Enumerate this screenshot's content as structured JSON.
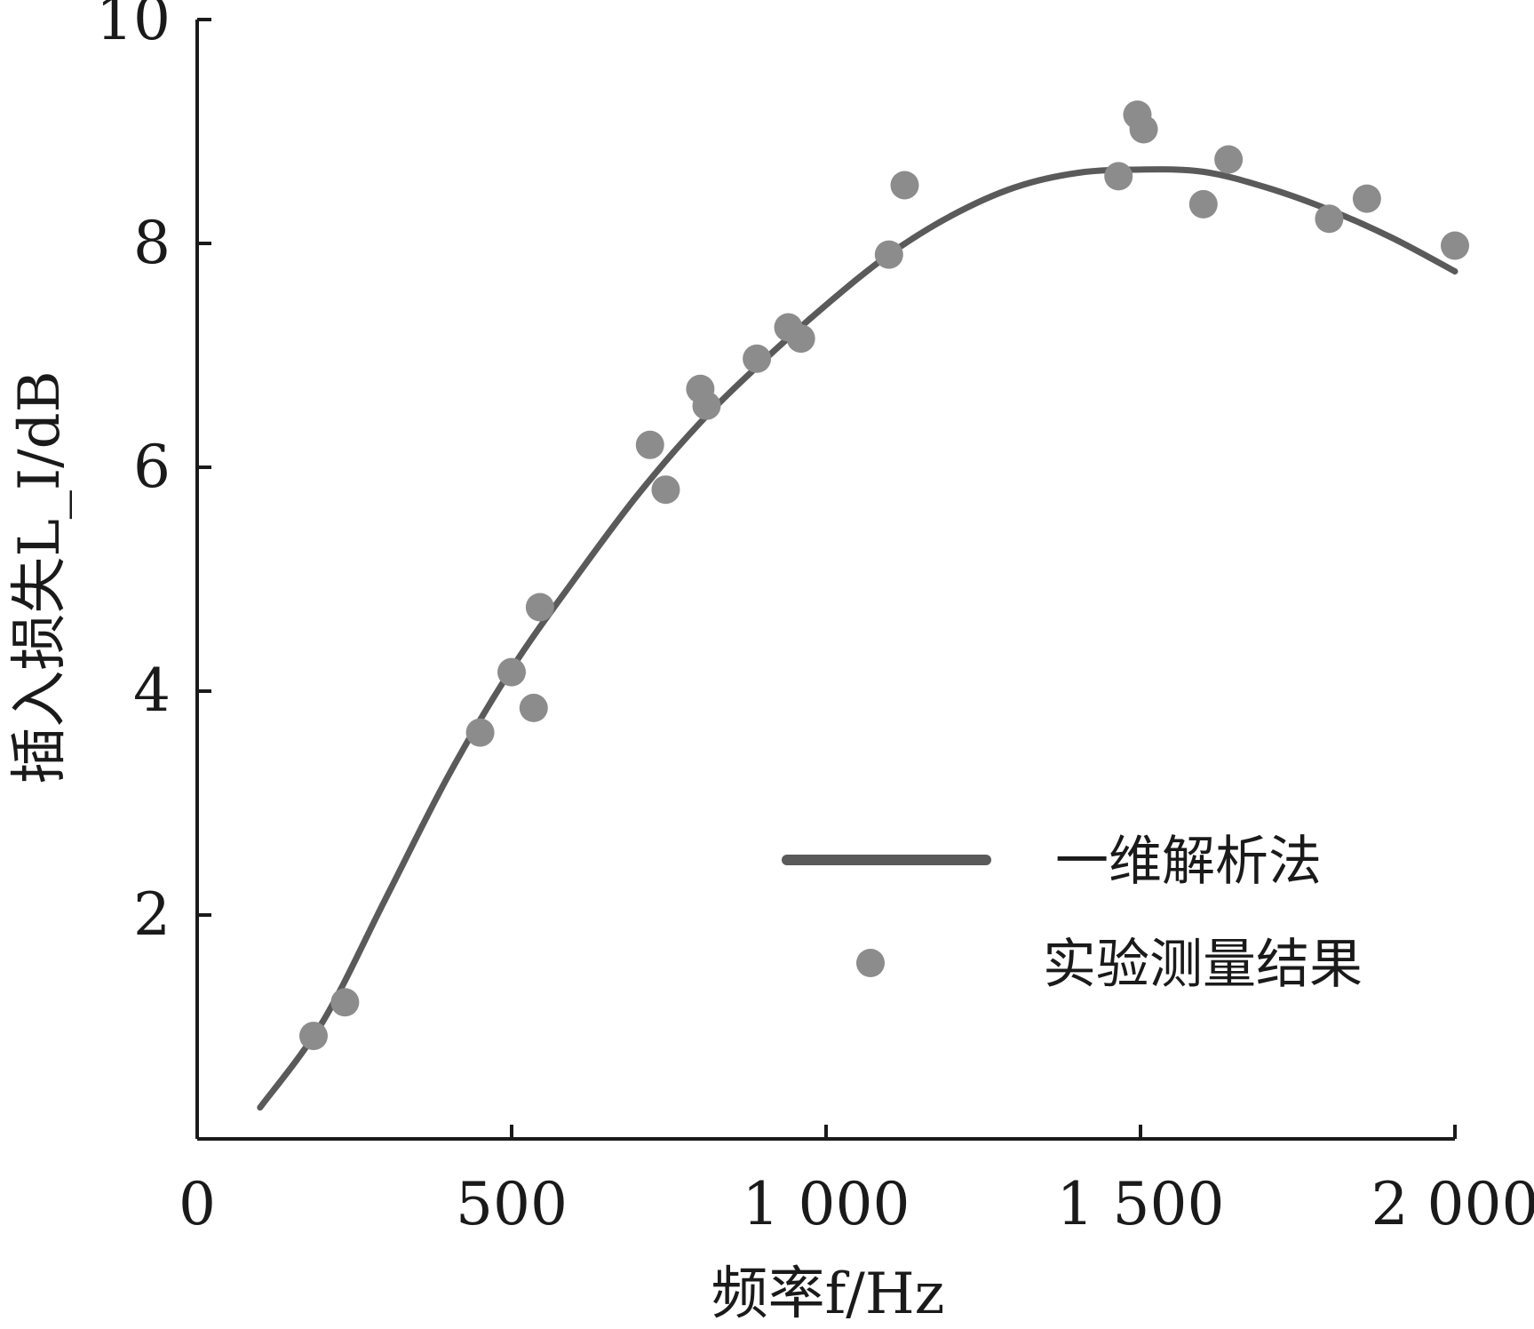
{
  "chart_data": {
    "type": "line",
    "xlabel": "频率f/Hz",
    "ylabel": "插入损失L_I/dB",
    "xlim": [
      0,
      2000
    ],
    "ylim": [
      0,
      10
    ],
    "xticks": [
      0,
      500,
      1000,
      1500,
      2000
    ],
    "xtick_labels": [
      "0",
      "500",
      "1 000",
      "1 500",
      "2 000"
    ],
    "yticks": [
      2,
      4,
      6,
      8,
      10
    ],
    "ytick_labels": [
      "2",
      "4",
      "6",
      "8",
      "10"
    ],
    "grid": false,
    "legend_position": "lower-right",
    "series": [
      {
        "name": "一维解析法",
        "kind": "line",
        "color": "#5a5a5a",
        "x": [
          100,
          200,
          300,
          400,
          500,
          600,
          700,
          800,
          900,
          1000,
          1100,
          1200,
          1300,
          1400,
          1500,
          1600,
          1700,
          1800,
          1900,
          2000
        ],
        "y": [
          0.28,
          1.05,
          2.15,
          3.25,
          4.2,
          5.0,
          5.75,
          6.4,
          6.95,
          7.45,
          7.9,
          8.25,
          8.5,
          8.63,
          8.66,
          8.64,
          8.5,
          8.3,
          8.05,
          7.75
        ]
      },
      {
        "name": "实验测量结果",
        "kind": "scatter",
        "color": "#8c8c8c",
        "x": [
          185,
          235,
          450,
          500,
          535,
          545,
          720,
          745,
          800,
          810,
          890,
          940,
          960,
          1100,
          1125,
          1465,
          1495,
          1505,
          1600,
          1640,
          1800,
          1860,
          2000
        ],
        "y": [
          0.92,
          1.22,
          3.63,
          4.17,
          3.85,
          4.75,
          6.2,
          5.8,
          6.7,
          6.55,
          6.97,
          7.25,
          7.15,
          7.9,
          8.52,
          8.6,
          9.15,
          9.02,
          8.35,
          8.75,
          8.22,
          8.4,
          7.98
        ]
      }
    ],
    "legend": [
      {
        "label": "一维解析法",
        "kind": "line"
      },
      {
        "label": "实验测量结果",
        "kind": "scatter"
      }
    ]
  }
}
